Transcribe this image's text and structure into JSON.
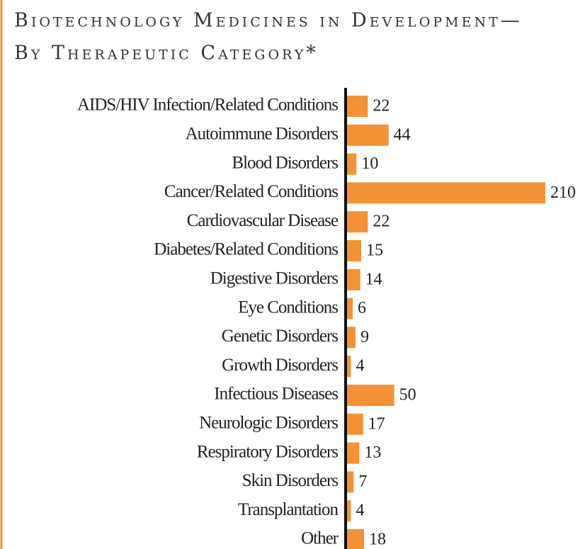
{
  "chart_data": {
    "type": "hbar",
    "title": "Biotechnology Medicines in Development—",
    "subtitle": "By Therapeutic Category*",
    "categories": [
      "AIDS/HIV Infection/Related Conditions",
      "Autoimmune Disorders",
      "Blood Disorders",
      "Cancer/Related Conditions",
      "Cardiovascular Disease",
      "Diabetes/Related Conditions",
      "Digestive Disorders",
      "Eye Conditions",
      "Genetic Disorders",
      "Growth Disorders",
      "Infectious Diseases",
      "Neurologic Disorders",
      "Respiratory Disorders",
      "Skin Disorders",
      "Transplantation",
      "Other"
    ],
    "values": [
      22,
      44,
      10,
      210,
      22,
      15,
      14,
      6,
      9,
      4,
      50,
      17,
      13,
      7,
      4,
      18
    ],
    "color": "#f39237",
    "xlim": [
      0,
      210
    ]
  }
}
